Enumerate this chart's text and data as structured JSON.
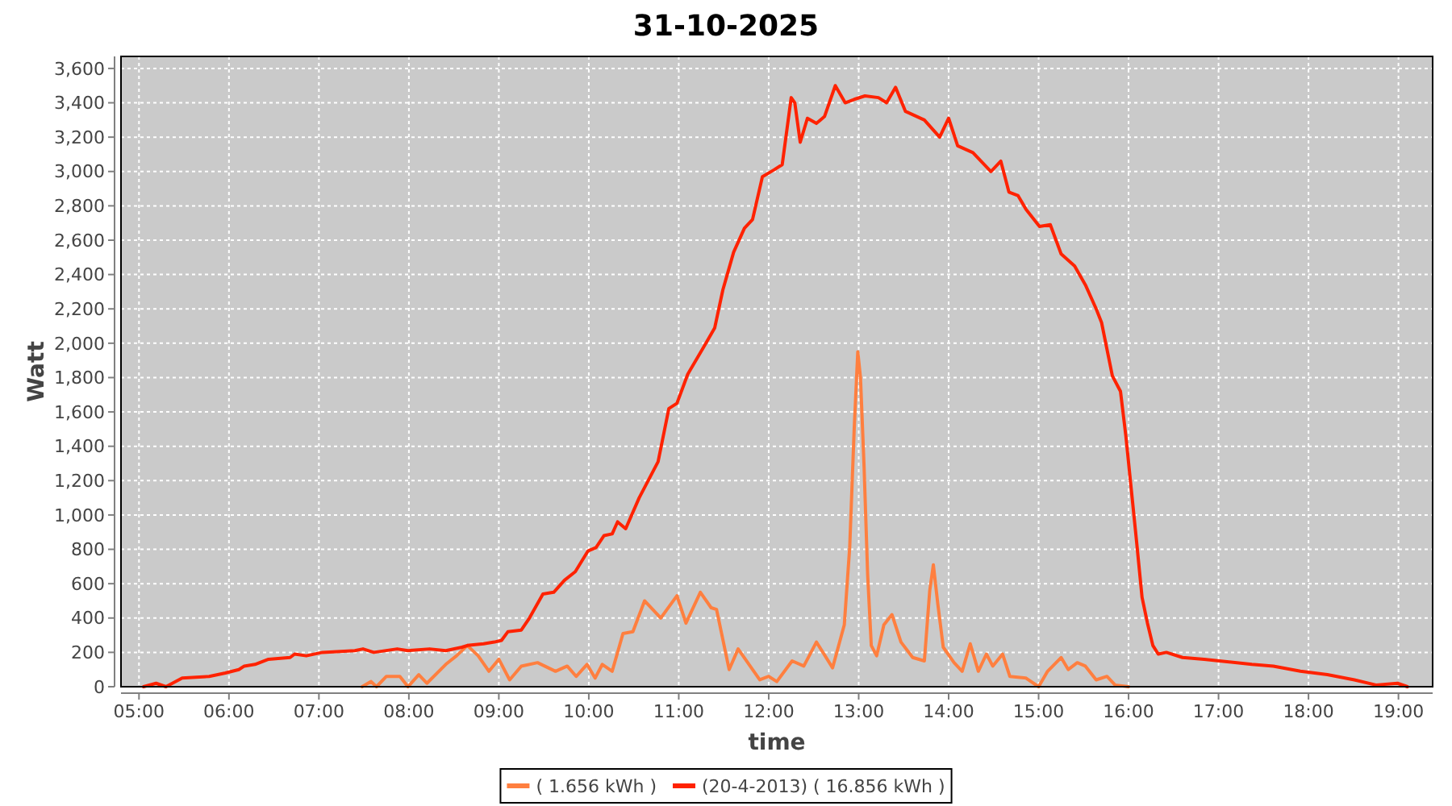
{
  "chart_data": {
    "type": "line",
    "title": "31-10-2025",
    "xlabel": "time",
    "ylabel": "Watt",
    "xlim": [
      4.8,
      19.38
    ],
    "xticks": [
      {
        "value": 5,
        "label": "05:00"
      },
      {
        "value": 6,
        "label": "06:00"
      },
      {
        "value": 7,
        "label": "07:00"
      },
      {
        "value": 8,
        "label": "08:00"
      },
      {
        "value": 9,
        "label": "09:00"
      },
      {
        "value": 10,
        "label": "10:00"
      },
      {
        "value": 11,
        "label": "11:00"
      },
      {
        "value": 12,
        "label": "12:00"
      },
      {
        "value": 13,
        "label": "13:00"
      },
      {
        "value": 14,
        "label": "14:00"
      },
      {
        "value": 15,
        "label": "15:00"
      },
      {
        "value": 16,
        "label": "16:00"
      },
      {
        "value": 17,
        "label": "17:00"
      },
      {
        "value": 18,
        "label": "18:00"
      },
      {
        "value": 19,
        "label": "19:00"
      }
    ],
    "ylim": [
      0,
      3670
    ],
    "yticks": [
      0,
      200,
      400,
      600,
      800,
      {
        "value": 1000,
        "label": "1,000"
      },
      {
        "value": 1200,
        "label": "1,200"
      },
      {
        "value": 1400,
        "label": "1,400"
      },
      {
        "value": 1600,
        "label": "1,600"
      },
      {
        "value": 1800,
        "label": "1,800"
      },
      {
        "value": 2000,
        "label": "2,000"
      },
      {
        "value": 2200,
        "label": "2,200"
      },
      {
        "value": 2400,
        "label": "2,400"
      },
      {
        "value": 2600,
        "label": "2,600"
      },
      {
        "value": 2800,
        "label": "2,800"
      },
      {
        "value": 3000,
        "label": "3,000"
      },
      {
        "value": 3200,
        "label": "3,200"
      },
      {
        "value": 3400,
        "label": "3,400"
      },
      {
        "value": 3600,
        "label": "3,600"
      }
    ],
    "grid": true,
    "legend": "bottom",
    "line_style": "solid",
    "series": [
      {
        "name": "( 1.656 kWh )",
        "color": "#ff7f3f",
        "x": [
          7.48,
          7.58,
          7.64,
          7.75,
          7.9,
          7.99,
          8.11,
          8.2,
          8.41,
          8.53,
          8.65,
          8.77,
          8.89,
          9.0,
          9.12,
          9.25,
          9.43,
          9.63,
          9.76,
          9.86,
          9.98,
          10.07,
          10.15,
          10.26,
          10.38,
          10.49,
          10.62,
          10.8,
          10.98,
          11.08,
          11.24,
          11.36,
          11.42,
          11.56,
          11.66,
          11.82,
          11.9,
          12.0,
          12.09,
          12.26,
          12.39,
          12.53,
          12.71,
          12.84,
          12.9,
          12.95,
          12.99,
          13.02,
          13.06,
          13.1,
          13.14,
          13.2,
          13.28,
          13.37,
          13.47,
          13.6,
          13.73,
          13.79,
          13.83,
          13.88,
          13.94,
          14.06,
          14.15,
          14.24,
          14.33,
          14.42,
          14.49,
          14.6,
          14.68,
          14.86,
          15.0,
          15.1,
          15.25,
          15.33,
          15.43,
          15.52,
          15.64,
          15.76,
          15.85,
          16.0
        ],
        "values": [
          0,
          30,
          0,
          60,
          60,
          0,
          70,
          20,
          130,
          180,
          240,
          180,
          90,
          160,
          40,
          120,
          140,
          90,
          120,
          60,
          130,
          50,
          130,
          90,
          310,
          320,
          500,
          400,
          530,
          370,
          550,
          460,
          450,
          100,
          220,
          100,
          40,
          60,
          30,
          150,
          120,
          260,
          110,
          360,
          810,
          1500,
          1950,
          1800,
          1280,
          650,
          240,
          180,
          360,
          420,
          260,
          170,
          150,
          560,
          710,
          480,
          230,
          140,
          90,
          250,
          90,
          190,
          120,
          190,
          60,
          50,
          0,
          90,
          170,
          100,
          140,
          120,
          40,
          60,
          10,
          0
        ]
      },
      {
        "name": "(20-4-2013) ( 16.856 kWh )",
        "color": "#ff2200",
        "x": [
          5.05,
          5.19,
          5.3,
          5.48,
          5.78,
          5.96,
          6.11,
          6.17,
          6.29,
          6.44,
          6.68,
          6.73,
          6.86,
          7.04,
          7.4,
          7.49,
          7.61,
          7.87,
          7.99,
          8.23,
          8.41,
          8.59,
          8.65,
          8.83,
          8.95,
          9.03,
          9.1,
          9.25,
          9.34,
          9.49,
          9.61,
          9.73,
          9.85,
          9.99,
          10.08,
          10.17,
          10.26,
          10.32,
          10.41,
          10.56,
          10.77,
          10.89,
          10.98,
          11.1,
          11.28,
          11.4,
          11.49,
          11.61,
          11.73,
          11.82,
          11.93,
          12.06,
          12.15,
          12.25,
          12.29,
          12.35,
          12.43,
          12.53,
          12.62,
          12.74,
          12.85,
          12.95,
          13.07,
          13.22,
          13.31,
          13.41,
          13.52,
          13.73,
          13.9,
          14.0,
          14.1,
          14.27,
          14.47,
          14.58,
          14.67,
          14.77,
          14.86,
          15.01,
          15.13,
          15.25,
          15.4,
          15.52,
          15.64,
          15.7,
          15.82,
          15.91,
          15.97,
          16.03,
          16.09,
          16.15,
          16.21,
          16.27,
          16.33,
          16.42,
          16.6,
          16.84,
          17.01,
          17.37,
          17.61,
          17.91,
          18.21,
          18.51,
          18.75,
          18.99,
          19.1
        ],
        "values": [
          0,
          20,
          0,
          50,
          60,
          80,
          100,
          120,
          130,
          160,
          170,
          190,
          180,
          200,
          210,
          220,
          200,
          220,
          210,
          220,
          210,
          230,
          240,
          250,
          260,
          270,
          320,
          330,
          400,
          540,
          550,
          620,
          670,
          790,
          810,
          880,
          890,
          960,
          920,
          1100,
          1310,
          1620,
          1650,
          1820,
          1980,
          2090,
          2310,
          2530,
          2670,
          2720,
          2970,
          3010,
          3040,
          3430,
          3400,
          3170,
          3310,
          3280,
          3320,
          3500,
          3400,
          3420,
          3440,
          3430,
          3400,
          3490,
          3350,
          3300,
          3200,
          3310,
          3150,
          3110,
          3000,
          3060,
          2880,
          2860,
          2780,
          2680,
          2690,
          2520,
          2450,
          2340,
          2200,
          2120,
          1810,
          1720,
          1460,
          1150,
          840,
          520,
          370,
          240,
          190,
          200,
          170,
          160,
          150,
          130,
          120,
          90,
          70,
          40,
          10,
          20,
          0
        ]
      }
    ]
  }
}
